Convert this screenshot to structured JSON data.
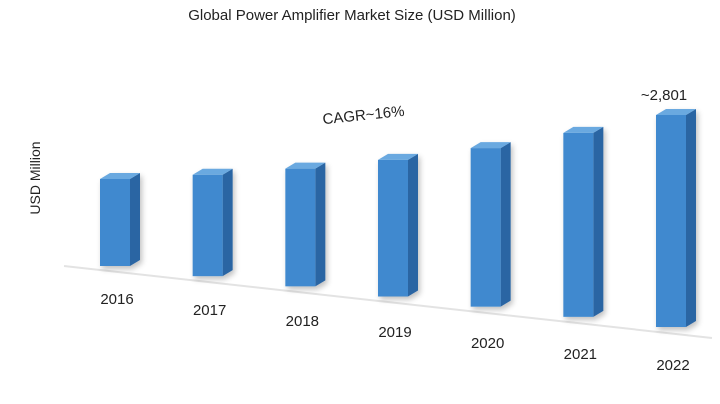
{
  "chart_data": {
    "type": "bar",
    "title": "Global Power Amplifier Market Size (USD Million)",
    "xlabel": "",
    "ylabel": "USD Million",
    "categories": [
      "2016",
      "2017",
      "2018",
      "2019",
      "2020",
      "2021",
      "2022"
    ],
    "values": [
      1150,
      1340,
      1555,
      1805,
      2095,
      2430,
      2801
    ],
    "ylim": [
      0,
      3000
    ],
    "grid": false,
    "legend": "none",
    "bar_color": "#3f89cf",
    "bar_color_dark": "#2a65a3",
    "bar_color_top": "#6aa9e0",
    "annotations": {
      "cagr": "CAGR~16%",
      "last_value": "~2,801"
    }
  }
}
